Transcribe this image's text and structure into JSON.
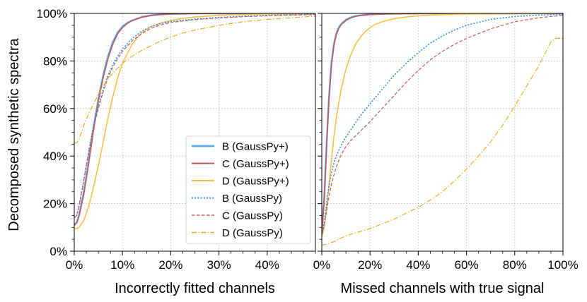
{
  "ylabel": "Decomposed synthetic spectra",
  "ytick_labels": [
    "0%",
    "20%",
    "40%",
    "60%",
    "80%",
    "100%"
  ],
  "legend": [
    {
      "label": "B (GaussPy+)",
      "color": "#56a8f0",
      "dash": "solid",
      "width": 2.4
    },
    {
      "label": "C (GaussPy+)",
      "color": "#c35a5a",
      "dash": "solid",
      "width": 1.6
    },
    {
      "label": "D (GaussPy+)",
      "color": "#fbbe46",
      "dash": "solid",
      "width": 1.6
    },
    {
      "label": "B (GaussPy)",
      "color": "#2b8ee0",
      "dash": "dotted",
      "width": 1.6
    },
    {
      "label": "C (GaussPy)",
      "color": "#c35a5a",
      "dash": "dashed",
      "width": 1.2
    },
    {
      "label": "D (GaussPy)",
      "color": "#f0a91e",
      "dash": "dashdot",
      "width": 1.2
    }
  ],
  "chart_data": [
    {
      "type": "line",
      "xlabel": "Incorrectly fitted channels",
      "ylabel": "Decomposed synthetic spectra",
      "xlim": [
        0,
        50
      ],
      "ylim": [
        0,
        100
      ],
      "xtick_values": [
        0,
        10,
        20,
        30,
        40
      ],
      "xtick_labels": [
        "0%",
        "10%",
        "20%",
        "30%",
        "40%"
      ],
      "ytick_values": [
        0,
        20,
        40,
        60,
        80,
        100
      ],
      "grid": true,
      "legend_position": "lower-right",
      "series": [
        {
          "name": "B (GaussPy+)",
          "x": [
            0,
            0.5,
            1,
            2,
            3,
            4,
            5,
            6,
            7,
            8,
            9,
            10,
            11,
            12,
            14,
            16,
            18,
            20,
            25,
            30,
            40,
            50
          ],
          "y": [
            11,
            12,
            15,
            25,
            38,
            52,
            64,
            74,
            82,
            88,
            92,
            94.5,
            96,
            97,
            98.5,
            99.2,
            99.6,
            99.8,
            100,
            100,
            100,
            100
          ]
        },
        {
          "name": "C (GaussPy+)",
          "x": [
            0,
            0.5,
            1,
            2,
            3,
            4,
            5,
            6,
            7,
            8,
            9,
            10,
            11,
            12,
            14,
            16,
            18,
            20,
            25,
            30,
            40,
            50
          ],
          "y": [
            11,
            12,
            15,
            24,
            37,
            51,
            63,
            73,
            81,
            87,
            91.5,
            94,
            95.8,
            97,
            98.4,
            99.1,
            99.5,
            99.7,
            99.9,
            100,
            100,
            100
          ]
        },
        {
          "name": "D (GaussPy+)",
          "x": [
            0,
            0.5,
            1,
            2,
            3,
            4,
            5,
            6,
            7,
            8,
            9,
            10,
            12,
            14,
            16,
            18,
            20,
            22,
            25,
            30,
            35,
            40,
            45,
            50
          ],
          "y": [
            9.5,
            9.5,
            10,
            13,
            19,
            27,
            36,
            46,
            56,
            65,
            73,
            79,
            87,
            92,
            94.5,
            96,
            97,
            97.8,
            98.5,
            99.2,
            99.5,
            99.7,
            99.8,
            99.9
          ]
        },
        {
          "name": "B (GaussPy)",
          "x": [
            0,
            0.5,
            1,
            2,
            3,
            4,
            5,
            6,
            7,
            8,
            9,
            10,
            12,
            14,
            16,
            18,
            20,
            25,
            30,
            35,
            40,
            45,
            50
          ],
          "y": [
            14,
            15,
            19,
            30,
            42,
            53,
            61,
            68,
            74,
            78.5,
            82,
            85,
            89.5,
            92.5,
            94.5,
            95.8,
            96.6,
            97.6,
            98.3,
            98.8,
            99.2,
            99.5,
            99.7
          ]
        },
        {
          "name": "C (GaussPy)",
          "x": [
            0,
            0.5,
            1,
            2,
            3,
            4,
            5,
            6,
            7,
            8,
            9,
            10,
            12,
            14,
            16,
            18,
            20,
            25,
            30,
            35,
            40,
            45,
            50
          ],
          "y": [
            14,
            15,
            19,
            30,
            42,
            52,
            60,
            67,
            73,
            77.5,
            81,
            84,
            88.5,
            91.5,
            93.8,
            95.2,
            96.2,
            97.4,
            98.1,
            98.6,
            99,
            99.3,
            99.5
          ]
        },
        {
          "name": "D (GaussPy)",
          "x": [
            0,
            0.5,
            1,
            2,
            3,
            4,
            5,
            6,
            7,
            8,
            9,
            10,
            12,
            14,
            16,
            18,
            20,
            22,
            25,
            30,
            35,
            40,
            45,
            50
          ],
          "y": [
            45.5,
            45.5,
            47,
            53,
            58,
            62,
            66,
            69.5,
            72.5,
            75,
            77,
            79,
            82,
            84.5,
            86.5,
            88.5,
            90,
            91.5,
            93,
            95,
            96.5,
            97.5,
            98.2,
            98.8
          ]
        }
      ]
    },
    {
      "type": "line",
      "xlabel": "Missed channels with true signal",
      "ylabel": "",
      "xlim": [
        0,
        100
      ],
      "ylim": [
        0,
        100
      ],
      "xtick_values": [
        0,
        20,
        40,
        60,
        80,
        100
      ],
      "xtick_labels": [
        "0%",
        "20%",
        "40%",
        "60%",
        "80%",
        "100%"
      ],
      "ytick_values": [
        0,
        20,
        40,
        60,
        80,
        100
      ],
      "grid": true,
      "series": [
        {
          "name": "B (GaussPy+)",
          "x": [
            0,
            1,
            2,
            3,
            4,
            5,
            6,
            7,
            8,
            10,
            12,
            14,
            16,
            18,
            20,
            25,
            30,
            40,
            50,
            60,
            80,
            100
          ],
          "y": [
            8,
            22,
            45,
            65,
            79,
            87,
            91.5,
            94,
            95.5,
            97.3,
            98.3,
            98.9,
            99.2,
            99.4,
            99.6,
            99.8,
            99.9,
            100,
            100,
            100,
            100,
            100
          ]
        },
        {
          "name": "C (GaussPy+)",
          "x": [
            0,
            1,
            2,
            3,
            4,
            5,
            6,
            7,
            8,
            10,
            12,
            14,
            16,
            18,
            20,
            25,
            30,
            40,
            50,
            60,
            80,
            100
          ],
          "y": [
            8,
            21,
            44,
            64,
            78,
            86.5,
            91,
            93.6,
            95.2,
            97,
            98.1,
            98.7,
            99.1,
            99.3,
            99.5,
            99.7,
            99.8,
            99.9,
            100,
            100,
            100,
            100
          ]
        },
        {
          "name": "D (GaussPy+)",
          "x": [
            0,
            1,
            2,
            3,
            4,
            5,
            6,
            8,
            10,
            12,
            14,
            16,
            18,
            20,
            22,
            25,
            30,
            35,
            40,
            50,
            60,
            80,
            100
          ],
          "y": [
            6,
            10,
            18,
            28,
            38,
            48,
            56,
            68,
            76.5,
            82.5,
            87,
            90,
            92.3,
            94,
            95.3,
            96.5,
            97.8,
            98.5,
            99,
            99.5,
            99.7,
            99.9,
            100
          ]
        },
        {
          "name": "B (GaussPy)",
          "x": [
            0,
            1,
            2,
            3,
            4,
            5,
            6,
            8,
            10,
            12,
            14,
            16,
            18,
            20,
            25,
            30,
            35,
            40,
            45,
            50,
            55,
            60,
            70,
            80,
            90,
            100
          ],
          "y": [
            7,
            12,
            20,
            27.5,
            33,
            37,
            40,
            44.5,
            48,
            51,
            54,
            57,
            59.5,
            62,
            68,
            74,
            79,
            83.5,
            87.5,
            90.5,
            93,
            95,
            97.5,
            98.7,
            99.3,
            99.6
          ]
        },
        {
          "name": "C (GaussPy)",
          "x": [
            0,
            1,
            2,
            3,
            4,
            5,
            6,
            8,
            10,
            12,
            14,
            16,
            18,
            20,
            25,
            30,
            35,
            40,
            45,
            50,
            55,
            60,
            70,
            80,
            90,
            100
          ],
          "y": [
            7,
            11,
            17,
            23,
            28,
            32,
            35.5,
            40.5,
            44,
            46.5,
            48.5,
            50.5,
            52.5,
            54.5,
            60,
            65.5,
            71,
            76,
            80.5,
            84,
            87,
            89.5,
            93.5,
            96.5,
            98.2,
            99.2
          ]
        },
        {
          "name": "D (GaussPy)",
          "x": [
            0,
            2,
            5,
            8,
            10,
            15,
            20,
            25,
            30,
            35,
            40,
            45,
            50,
            55,
            60,
            65,
            70,
            75,
            80,
            85,
            90,
            93,
            95,
            97,
            100
          ],
          "y": [
            2.5,
            3,
            4,
            5.5,
            6.5,
            8,
            9.5,
            11.5,
            13.5,
            16,
            18.5,
            21.5,
            25,
            29.5,
            34.5,
            40,
            46,
            53,
            61,
            69.5,
            78,
            84,
            88,
            89.5,
            89.5
          ]
        }
      ]
    }
  ]
}
